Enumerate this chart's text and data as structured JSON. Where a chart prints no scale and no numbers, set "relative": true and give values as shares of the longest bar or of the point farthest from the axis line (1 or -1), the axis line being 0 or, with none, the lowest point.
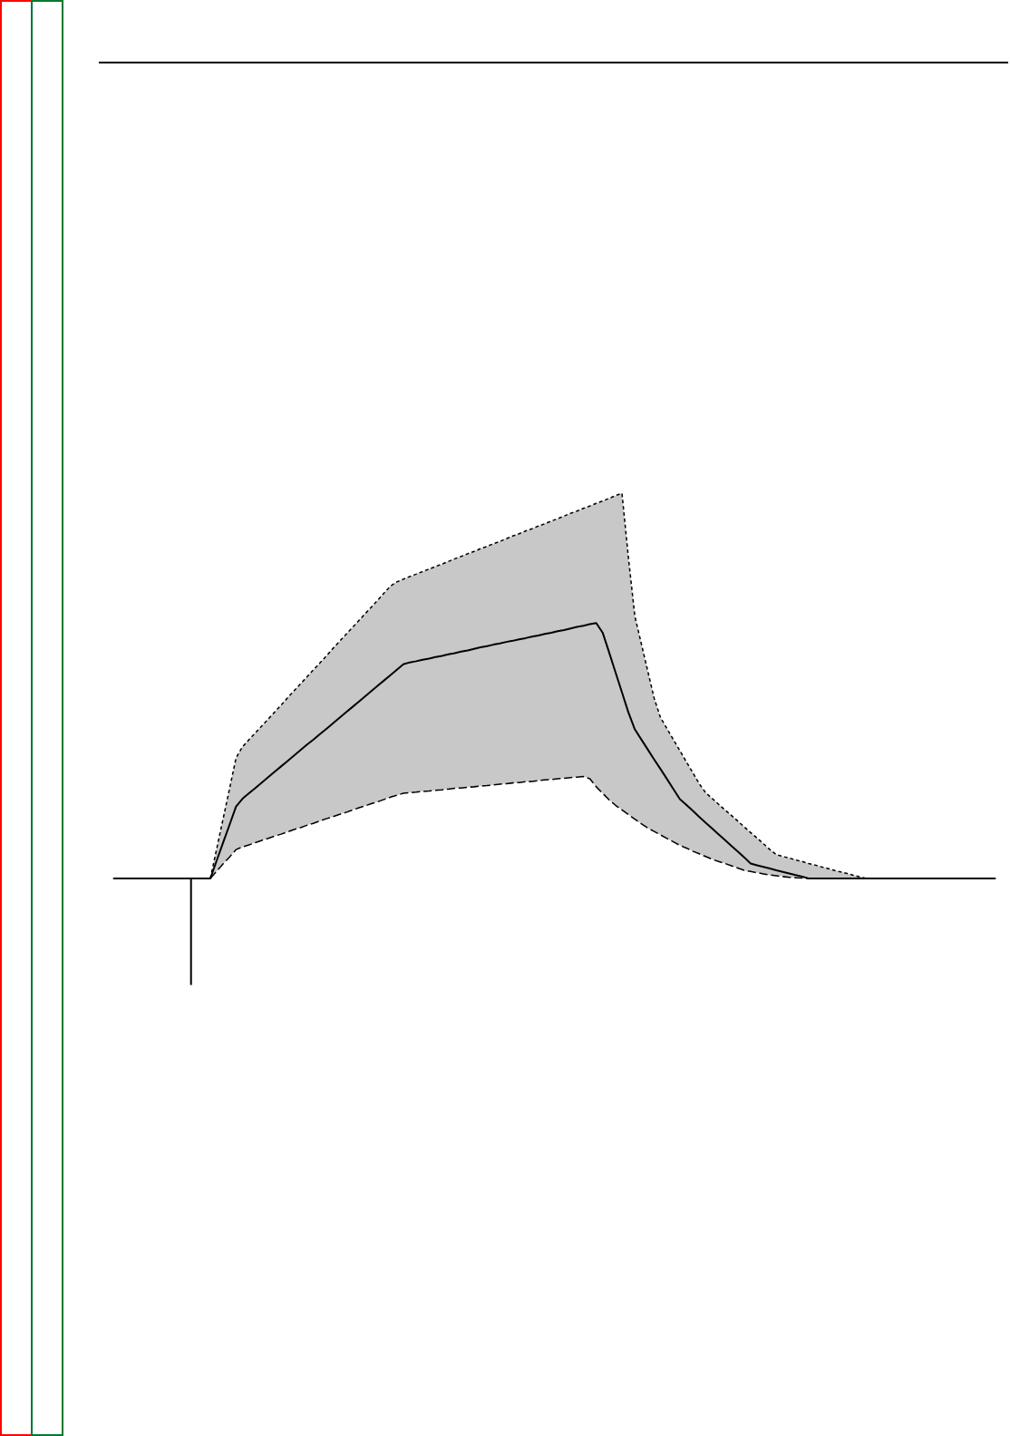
{
  "chart_data": {
    "type": "line",
    "relative": true,
    "categories": [
      null,
      null,
      null,
      null,
      null,
      null,
      null,
      null,
      null,
      null,
      null,
      null,
      null,
      null,
      null,
      null,
      null,
      null,
      null,
      null,
      null,
      null,
      null,
      null,
      null,
      null,
      null,
      null,
      null,
      null,
      null,
      null,
      null,
      null,
      null,
      null,
      null,
      null,
      null,
      null,
      null,
      null,
      null,
      null,
      null,
      null,
      null,
      null,
      null,
      null,
      null,
      null,
      null,
      null,
      null,
      null,
      null,
      null,
      null,
      null,
      null,
      null,
      null,
      null,
      null,
      null,
      null,
      null,
      null,
      null,
      null,
      null,
      null,
      null,
      null,
      null,
      null,
      null,
      null,
      null,
      null,
      null,
      null,
      null,
      null,
      null,
      null,
      null,
      null,
      null,
      null,
      null,
      null,
      null,
      null,
      null,
      null,
      null,
      null,
      null,
      null,
      null,
      null,
      null,
      null,
      null,
      null,
      null,
      null,
      null,
      null,
      null,
      null,
      null,
      null,
      null,
      null,
      null,
      null,
      null,
      null,
      null,
      null,
      null,
      null,
      null,
      null,
      null,
      null,
      null,
      null,
      null,
      null,
      null,
      null,
      null,
      null,
      null
    ],
    "series": [
      {
        "color": "#000000",
        "line_style": "solid",
        "values": [
          0,
          0,
          0,
          0,
          0,
          0,
          0,
          0,
          0,
          0,
          0,
          0,
          0,
          0,
          0,
          0,
          0.047,
          0.094,
          0.14,
          0.187,
          0.207,
          0.221,
          0.235,
          0.249,
          0.263,
          0.277,
          0.291,
          0.305,
          0.319,
          0.333,
          0.347,
          0.36,
          0.374,
          0.388,
          0.402,
          0.416,
          0.43,
          0.444,
          0.458,
          0.472,
          0.486,
          0.5,
          0.514,
          0.528,
          0.542,
          0.556,
          0.561,
          0.564,
          0.568,
          0.571,
          0.575,
          0.578,
          0.582,
          0.585,
          0.589,
          0.592,
          0.596,
          0.6,
          0.603,
          0.607,
          0.61,
          0.614,
          0.617,
          0.621,
          0.624,
          0.628,
          0.631,
          0.635,
          0.638,
          0.642,
          0.645,
          0.649,
          0.653,
          0.656,
          0.66,
          0.663,
          0.638,
          0.587,
          0.535,
          0.483,
          0.431,
          0.387,
          0.361,
          0.335,
          0.309,
          0.284,
          0.258,
          0.232,
          0.206,
          0.191,
          0.176,
          0.16,
          0.145,
          0.13,
          0.115,
          0.1,
          0.085,
          0.07,
          0.055,
          0.039,
          0.034,
          0.03,
          0.026,
          0.021,
          0.017,
          0.013,
          0.009,
          0.005,
          0,
          0,
          0,
          0,
          0,
          0,
          0,
          0,
          0,
          0,
          0,
          0,
          0,
          0,
          0,
          0,
          0,
          0,
          0,
          0,
          0,
          0,
          0,
          0,
          0,
          0,
          0,
          0,
          0,
          0
        ],
        "lower": [
          null,
          null,
          null,
          null,
          null,
          null,
          null,
          null,
          null,
          null,
          null,
          null,
          null,
          null,
          null,
          0,
          0.019,
          0.038,
          0.056,
          0.075,
          0.082,
          0.087,
          0.093,
          0.099,
          0.104,
          0.11,
          0.115,
          0.121,
          0.127,
          0.132,
          0.138,
          0.143,
          0.149,
          0.155,
          0.16,
          0.166,
          0.171,
          0.177,
          0.183,
          0.188,
          0.194,
          0.199,
          0.205,
          0.211,
          0.216,
          0.221,
          0.223,
          0.224,
          0.226,
          0.227,
          0.229,
          0.23,
          0.232,
          0.234,
          0.235,
          0.237,
          0.238,
          0.24,
          0.241,
          0.243,
          0.245,
          0.246,
          0.248,
          0.249,
          0.251,
          0.252,
          0.254,
          0.256,
          0.257,
          0.259,
          0.26,
          0.262,
          0.263,
          0.265,
          0.259,
          0.238,
          0.221,
          0.204,
          0.19,
          0.178,
          0.166,
          0.154,
          0.142,
          0.131,
          0.122,
          0.113,
          0.104,
          0.095,
          0.086,
          0.079,
          0.071,
          0.064,
          0.057,
          0.05,
          0.044,
          0.039,
          0.033,
          0.027,
          0.021,
          0.018,
          0.015,
          0.012,
          0.009,
          0.007,
          0.005,
          0.003,
          0.002,
          0.001,
          0,
          0,
          0,
          0,
          0,
          0,
          0,
          0,
          0,
          0,
          null,
          null,
          null,
          null,
          null,
          null,
          null,
          null,
          null,
          null,
          null,
          null,
          null,
          null,
          null,
          null,
          null,
          null,
          null,
          null
        ],
        "upper": [
          null,
          null,
          null,
          null,
          null,
          null,
          null,
          null,
          null,
          null,
          null,
          null,
          null,
          null,
          null,
          0,
          0.078,
          0.156,
          0.234,
          0.313,
          0.342,
          0.36,
          0.378,
          0.396,
          0.414,
          0.432,
          0.45,
          0.469,
          0.487,
          0.505,
          0.523,
          0.541,
          0.559,
          0.577,
          0.596,
          0.614,
          0.632,
          0.65,
          0.668,
          0.686,
          0.704,
          0.722,
          0.741,
          0.759,
          0.77,
          0.777,
          0.784,
          0.79,
          0.797,
          0.803,
          0.81,
          0.816,
          0.823,
          0.83,
          0.836,
          0.843,
          0.849,
          0.856,
          0.862,
          0.869,
          0.875,
          0.882,
          0.889,
          0.895,
          0.902,
          0.908,
          0.915,
          0.921,
          0.928,
          0.934,
          0.941,
          0.948,
          0.954,
          0.961,
          0.967,
          0.974,
          0.98,
          0.987,
          0.994,
          1,
          0.833,
          0.681,
          0.61,
          0.539,
          0.468,
          0.417,
          0.389,
          0.36,
          0.332,
          0.303,
          0.275,
          0.246,
          0.223,
          0.208,
          0.193,
          0.178,
          0.164,
          0.149,
          0.134,
          0.119,
          0.105,
          0.09,
          0.075,
          0.062,
          0.057,
          0.053,
          0.048,
          0.044,
          0.039,
          0.035,
          0.03,
          0.026,
          0.021,
          0.017,
          0.013,
          0.008,
          0.004,
          0,
          null,
          null,
          null,
          null,
          null,
          null,
          null,
          null,
          null,
          null,
          null,
          null,
          null,
          null,
          null,
          null,
          null,
          null,
          null,
          null
        ]
      },
      {
        "color": "#000000",
        "line_style": "dotted",
        "values": [
          null,
          null,
          null,
          null,
          null,
          null,
          null,
          null,
          null,
          null,
          null,
          null,
          null,
          null,
          null,
          0,
          0.078,
          0.156,
          0.234,
          0.313,
          0.342,
          0.36,
          0.378,
          0.396,
          0.414,
          0.432,
          0.45,
          0.469,
          0.487,
          0.505,
          0.523,
          0.541,
          0.559,
          0.577,
          0.596,
          0.614,
          0.632,
          0.65,
          0.668,
          0.686,
          0.704,
          0.722,
          0.741,
          0.759,
          0.77,
          0.777,
          0.784,
          0.79,
          0.797,
          0.803,
          0.81,
          0.816,
          0.823,
          0.83,
          0.836,
          0.843,
          0.849,
          0.856,
          0.862,
          0.869,
          0.875,
          0.882,
          0.889,
          0.895,
          0.902,
          0.908,
          0.915,
          0.921,
          0.928,
          0.934,
          0.941,
          0.948,
          0.954,
          0.961,
          0.967,
          0.974,
          0.98,
          0.987,
          0.994,
          1,
          0.833,
          0.681,
          0.61,
          0.539,
          0.468,
          0.417,
          0.389,
          0.36,
          0.332,
          0.303,
          0.275,
          0.246,
          0.223,
          0.208,
          0.193,
          0.178,
          0.164,
          0.149,
          0.134,
          0.119,
          0.105,
          0.09,
          0.075,
          0.062,
          0.057,
          0.053,
          0.048,
          0.044,
          0.039,
          0.035,
          0.03,
          0.026,
          0.021,
          0.017,
          0.013,
          0.008,
          0.004,
          0,
          null,
          null,
          null,
          null,
          null,
          null,
          null,
          null,
          null,
          null,
          null,
          null,
          null,
          null,
          null,
          null,
          null,
          null,
          null,
          null
        ]
      },
      {
        "color": "#000000",
        "line_style": "dashed",
        "values": [
          null,
          null,
          null,
          null,
          null,
          null,
          null,
          null,
          null,
          null,
          null,
          null,
          null,
          null,
          null,
          0,
          0.019,
          0.038,
          0.056,
          0.075,
          0.082,
          0.087,
          0.093,
          0.099,
          0.104,
          0.11,
          0.115,
          0.121,
          0.127,
          0.132,
          0.138,
          0.143,
          0.149,
          0.155,
          0.16,
          0.166,
          0.171,
          0.177,
          0.183,
          0.188,
          0.194,
          0.199,
          0.205,
          0.211,
          0.216,
          0.221,
          0.223,
          0.224,
          0.226,
          0.227,
          0.229,
          0.23,
          0.232,
          0.234,
          0.235,
          0.237,
          0.238,
          0.24,
          0.241,
          0.243,
          0.245,
          0.246,
          0.248,
          0.249,
          0.251,
          0.252,
          0.254,
          0.256,
          0.257,
          0.259,
          0.26,
          0.262,
          0.263,
          0.265,
          0.259,
          0.238,
          0.221,
          0.204,
          0.19,
          0.178,
          0.166,
          0.154,
          0.142,
          0.131,
          0.122,
          0.113,
          0.104,
          0.095,
          0.086,
          0.079,
          0.071,
          0.064,
          0.057,
          0.05,
          0.044,
          0.039,
          0.033,
          0.027,
          0.021,
          0.018,
          0.015,
          0.012,
          0.009,
          0.007,
          0.005,
          0.003,
          0.002,
          0.001,
          0,
          null,
          null,
          null,
          null,
          null,
          null,
          null,
          null,
          null,
          null,
          null,
          null,
          null,
          null,
          null,
          null,
          null,
          null,
          null,
          null,
          null,
          null,
          null,
          null,
          null,
          null,
          null,
          null,
          null
        ]
      }
    ]
  }
}
